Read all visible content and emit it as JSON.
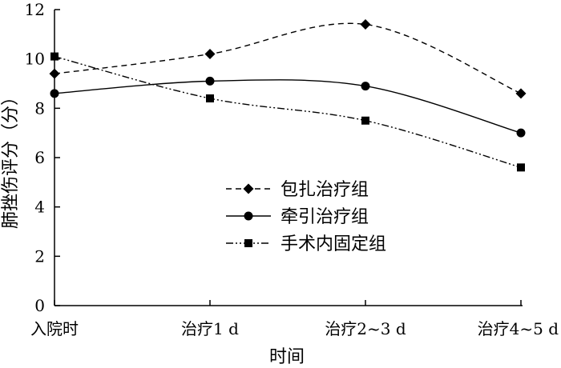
{
  "chart_data": {
    "type": "line",
    "categories": [
      "入院时",
      "治疗1 d",
      "治疗2~3 d",
      "治疗4~5 d"
    ],
    "series": [
      {
        "name": "包扎治疗组",
        "values": [
          9.4,
          10.2,
          11.4,
          8.6
        ],
        "marker": "diamond",
        "line": "dashed"
      },
      {
        "name": "牵引治疗组",
        "values": [
          8.6,
          9.1,
          8.9,
          7.0
        ],
        "marker": "circle",
        "line": "solid"
      },
      {
        "name": "手术内固定组",
        "values": [
          10.1,
          8.4,
          7.5,
          5.6
        ],
        "marker": "square",
        "line": "dash-dot-dot"
      }
    ],
    "xlabel": "时间",
    "ylabel": "肺挫伤评分（分）",
    "ylim": [
      0,
      12
    ],
    "yticks": [
      0,
      2,
      4,
      6,
      8,
      10,
      12
    ],
    "grid": false,
    "legend_position": "center-right",
    "colors": {
      "line": "#000000",
      "background": "#ffffff"
    }
  }
}
